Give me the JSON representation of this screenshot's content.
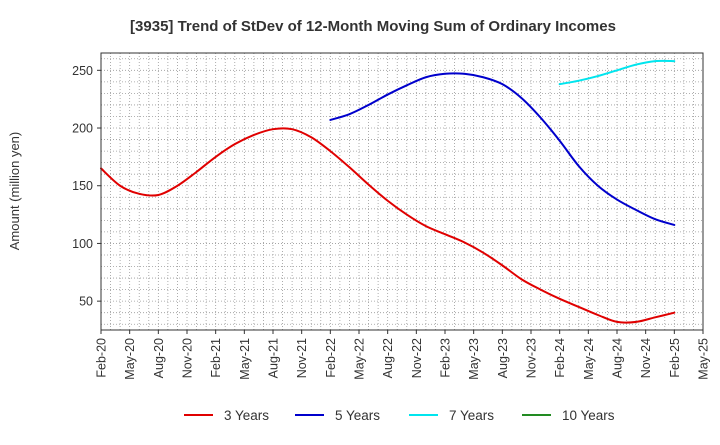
{
  "chart_data": {
    "type": "line",
    "title": "[3935]  Trend of StDev of 12-Month Moving Sum of Ordinary Incomes",
    "xlabel": "",
    "ylabel": "Amount (million yen)",
    "ylim": [
      25,
      265
    ],
    "yticks": [
      50,
      100,
      150,
      200,
      250
    ],
    "grid": true,
    "legend_position": "bottom",
    "x_tick_labels": [
      "Feb-20",
      "May-20",
      "Aug-20",
      "Nov-20",
      "Feb-21",
      "May-21",
      "Aug-21",
      "Nov-21",
      "Feb-22",
      "May-22",
      "Aug-22",
      "Nov-22",
      "Feb-23",
      "May-23",
      "Aug-23",
      "Nov-23",
      "Feb-24",
      "May-24",
      "Aug-24",
      "Nov-24",
      "Feb-25",
      "May-25"
    ],
    "series": [
      {
        "name": "3 Years",
        "color": "#e00000",
        "x": [
          "2020-02",
          "2020-04",
          "2020-06",
          "2020-08",
          "2020-10",
          "2020-12",
          "2021-02",
          "2021-04",
          "2021-06",
          "2021-08",
          "2021-10",
          "2021-12",
          "2022-02",
          "2022-04",
          "2022-06",
          "2022-08",
          "2022-10",
          "2022-12",
          "2023-02",
          "2023-04",
          "2023-06",
          "2023-08",
          "2023-10",
          "2023-12",
          "2024-02",
          "2024-04",
          "2024-06",
          "2024-08",
          "2024-10",
          "2024-12",
          "2025-02"
        ],
        "values": [
          165,
          150,
          143,
          142,
          150,
          162,
          175,
          186,
          194,
          199,
          199,
          192,
          180,
          166,
          151,
          137,
          125,
          115,
          108,
          101,
          92,
          81,
          69,
          60,
          52,
          45,
          38,
          32,
          32,
          36,
          40
        ]
      },
      {
        "name": "5 Years",
        "color": "#0000cc",
        "x": [
          "2022-02",
          "2022-04",
          "2022-06",
          "2022-08",
          "2022-10",
          "2022-12",
          "2023-02",
          "2023-04",
          "2023-06",
          "2023-08",
          "2023-10",
          "2023-12",
          "2024-02",
          "2024-04",
          "2024-06",
          "2024-08",
          "2024-10",
          "2024-12",
          "2025-02"
        ],
        "values": [
          207,
          212,
          220,
          229,
          237,
          244,
          247,
          247,
          244,
          238,
          226,
          209,
          189,
          167,
          150,
          138,
          129,
          121,
          116
        ]
      },
      {
        "name": "7 Years",
        "color": "#00e5ee",
        "x": [
          "2024-02",
          "2024-04",
          "2024-06",
          "2024-08",
          "2024-10",
          "2024-12",
          "2025-02"
        ],
        "values": [
          238,
          241,
          245,
          250,
          255,
          258,
          258
        ]
      },
      {
        "name": "10 Years",
        "color": "#228b22",
        "x": [],
        "values": []
      }
    ]
  }
}
